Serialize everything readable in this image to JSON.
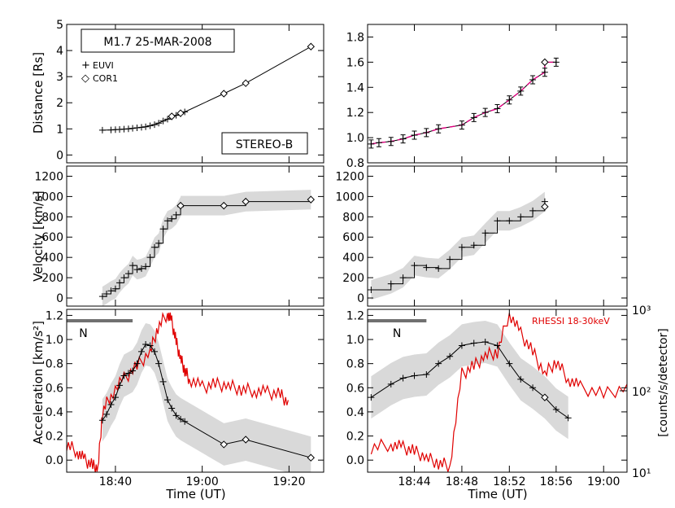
{
  "figure": {
    "ylabels": [
      "Distance [Rs]",
      "Velocity [km/s]",
      "Acceleration [km/s²]"
    ],
    "xlabel": "Time (UT)",
    "right_ylabel": "[counts/s/detector]",
    "legend_title": "M1.7 25-MAR-2008",
    "legend_euvi": "EUVI",
    "legend_cor1": "COR1",
    "spacecraft": "STEREO-B",
    "rhessi_label": "RHESSI 18-30keV",
    "bar_label": "N",
    "colors": {
      "profile": "#000000",
      "rhessi": "#e00000",
      "fit": "#e0007f",
      "band": "#d9d9d9",
      "bar": "#707070"
    }
  },
  "chart_data": [
    {
      "panel": "left-distance",
      "type": "line",
      "ylabel": "Distance [Rs]",
      "xlim": [
        18.48,
        19.466
      ],
      "ylim": [
        -0.3,
        5
      ],
      "yticks": [
        0,
        1,
        2,
        3,
        4,
        5
      ],
      "series": [
        {
          "name": "EUVI",
          "marker": "plus",
          "x": [
            18.617,
            18.65,
            18.667,
            18.683,
            18.7,
            18.717,
            18.733,
            18.75,
            18.767,
            18.783,
            18.8,
            18.817,
            18.833,
            18.85,
            18.867,
            18.883,
            18.9,
            18.917,
            18.933
          ],
          "y": [
            0.95,
            0.96,
            0.97,
            0.98,
            0.99,
            1.0,
            1.02,
            1.04,
            1.06,
            1.08,
            1.12,
            1.16,
            1.22,
            1.3,
            1.37,
            1.46,
            1.52,
            1.58,
            1.65
          ]
        },
        {
          "name": "COR1",
          "marker": "diamond",
          "x": [
            18.883,
            18.917,
            19.083,
            19.167,
            19.417
          ],
          "y": [
            1.48,
            1.6,
            2.35,
            2.75,
            4.15
          ]
        }
      ]
    },
    {
      "panel": "left-velocity",
      "type": "line",
      "ylabel": "Velocity [km/s]",
      "xlim": [
        18.48,
        19.466
      ],
      "ylim": [
        -80,
        1300
      ],
      "yticks": [
        0,
        200,
        400,
        600,
        800,
        1000,
        1200
      ],
      "series": [
        {
          "name": "EUVI",
          "marker": "plus",
          "x": [
            18.617,
            18.633,
            18.65,
            18.667,
            18.683,
            18.7,
            18.717,
            18.733,
            18.75,
            18.767,
            18.783,
            18.8,
            18.817,
            18.833,
            18.85,
            18.867,
            18.883,
            18.9,
            18.917
          ],
          "y": [
            15,
            40,
            70,
            90,
            150,
            200,
            240,
            320,
            280,
            290,
            310,
            400,
            500,
            540,
            680,
            760,
            780,
            820,
            900
          ]
        },
        {
          "name": "COR1",
          "marker": "diamond",
          "x": [
            18.917,
            19.083,
            19.167,
            19.417
          ],
          "y": [
            910,
            910,
            950,
            970
          ]
        }
      ]
    },
    {
      "panel": "left-acceleration",
      "type": "line",
      "ylabel": "Acceleration [km/s²]",
      "xlim": [
        18.48,
        19.466
      ],
      "ylim": [
        -0.1,
        1.25
      ],
      "yticks": [
        0.0,
        0.2,
        0.4,
        0.6,
        0.8,
        1.0,
        1.2
      ],
      "series": [
        {
          "name": "EUVI",
          "marker": "plus",
          "x": [
            18.617,
            18.633,
            18.65,
            18.667,
            18.683,
            18.7,
            18.717,
            18.733,
            18.75,
            18.767,
            18.783,
            18.8,
            18.817,
            18.833,
            18.85,
            18.867,
            18.883,
            18.9,
            18.917,
            18.933
          ],
          "y": [
            0.33,
            0.38,
            0.46,
            0.52,
            0.62,
            0.7,
            0.72,
            0.74,
            0.8,
            0.9,
            0.96,
            0.95,
            0.9,
            0.8,
            0.65,
            0.5,
            0.43,
            0.37,
            0.34,
            0.32
          ]
        },
        {
          "name": "COR1",
          "marker": "diamond",
          "x": [
            19.083,
            19.167,
            19.417
          ],
          "y": [
            0.13,
            0.17,
            0.02
          ]
        },
        {
          "name": "RHESSI 18-30keV",
          "units": "counts/s/detector",
          "x": [
            18.48,
            18.52,
            18.55,
            18.58,
            18.6,
            18.617,
            18.65,
            18.7,
            18.75,
            18.8,
            18.83,
            18.867,
            18.883,
            18.9,
            18.917,
            18.933,
            18.95,
            19.0,
            19.05,
            19.1,
            19.15,
            19.2,
            19.25,
            19.3,
            19.33
          ],
          "y": [
            22,
            18,
            14,
            12,
            11,
            55,
            90,
            140,
            200,
            300,
            600,
            900,
            700,
            400,
            250,
            180,
            140,
            110,
            120,
            115,
            105,
            100,
            95,
            90,
            70
          ]
        }
      ],
      "annotation": {
        "label": "N",
        "x_range": [
          18.48,
          18.733
        ]
      }
    },
    {
      "panel": "right-distance",
      "type": "line",
      "xlim": [
        18.667,
        19.033
      ],
      "ylim": [
        0.8,
        1.9
      ],
      "yticks": [
        0.8,
        1.0,
        1.2,
        1.4,
        1.6,
        1.8
      ],
      "series": [
        {
          "name": "EUVI",
          "marker": "plus",
          "x": [
            18.672,
            18.683,
            18.7,
            18.717,
            18.733,
            18.75,
            18.767,
            18.8,
            18.817,
            18.833,
            18.85,
            18.867,
            18.883,
            18.9,
            18.917,
            18.933
          ],
          "y": [
            0.95,
            0.96,
            0.97,
            0.99,
            1.02,
            1.04,
            1.07,
            1.1,
            1.16,
            1.2,
            1.23,
            1.3,
            1.37,
            1.46,
            1.52,
            1.6
          ]
        },
        {
          "name": "COR1",
          "marker": "diamond",
          "x": [
            18.917
          ],
          "y": [
            1.6
          ]
        }
      ]
    },
    {
      "panel": "right-velocity",
      "type": "line",
      "xlim": [
        18.667,
        19.033
      ],
      "ylim": [
        -80,
        1300
      ],
      "yticks": [
        0,
        200,
        400,
        600,
        800,
        1000,
        1200
      ],
      "series": [
        {
          "name": "EUVI",
          "marker": "plus",
          "x": [
            18.672,
            18.7,
            18.717,
            18.733,
            18.75,
            18.767,
            18.783,
            18.8,
            18.817,
            18.833,
            18.85,
            18.867,
            18.883,
            18.9,
            18.917
          ],
          "y": [
            80,
            140,
            200,
            320,
            300,
            290,
            380,
            500,
            520,
            640,
            760,
            760,
            800,
            860,
            950
          ]
        },
        {
          "name": "COR1",
          "marker": "diamond",
          "x": [
            18.917
          ],
          "y": [
            900
          ]
        }
      ]
    },
    {
      "panel": "right-acceleration",
      "type": "line",
      "xlim": [
        18.667,
        19.033
      ],
      "ylim": [
        -0.1,
        1.25
      ],
      "yticks": [
        0.0,
        0.2,
        0.4,
        0.6,
        0.8,
        1.0,
        1.2
      ],
      "right_axis": {
        "label": "[counts/s/detector]",
        "scale": "log",
        "lim": [
          10,
          1000
        ],
        "ticks": [
          "10¹",
          "10²",
          "10³"
        ]
      },
      "series": [
        {
          "name": "EUVI",
          "marker": "plus",
          "x": [
            18.672,
            18.7,
            18.717,
            18.733,
            18.75,
            18.767,
            18.783,
            18.8,
            18.817,
            18.833,
            18.85,
            18.867,
            18.883,
            18.9,
            18.917,
            18.933,
            18.95
          ],
          "y": [
            0.52,
            0.63,
            0.68,
            0.7,
            0.71,
            0.8,
            0.86,
            0.95,
            0.97,
            0.98,
            0.95,
            0.8,
            0.67,
            0.6,
            0.52,
            0.42,
            0.35
          ]
        },
        {
          "name": "COR1",
          "marker": "diamond",
          "x": [
            18.917
          ],
          "y": [
            0.52
          ]
        },
        {
          "name": "RHESSI 18-30keV",
          "units": "counts/s/detector",
          "x": [
            18.672,
            18.7,
            18.717,
            18.733,
            18.75,
            18.767,
            18.783,
            18.8,
            18.817,
            18.833,
            18.85,
            18.867,
            18.883,
            18.9,
            18.917,
            18.933,
            18.95,
            18.967,
            19.0,
            19.033
          ],
          "y": [
            20,
            22,
            20,
            18,
            15,
            13,
            12,
            160,
            200,
            270,
            300,
            900,
            500,
            300,
            160,
            230,
            140,
            110,
            90,
            110
          ]
        }
      ],
      "annotation": {
        "label": "N",
        "x_range": [
          18.667,
          18.75
        ]
      }
    }
  ],
  "x_axes": {
    "left": {
      "ticks": [
        18.667,
        19.0,
        19.333
      ],
      "labels": [
        "18:40",
        "19:00",
        "19:20"
      ]
    },
    "right": {
      "ticks": [
        18.733,
        18.8,
        18.867,
        18.933,
        19.0
      ],
      "labels": [
        "18:44",
        "18:48",
        "18:52",
        "18:56",
        "19:00"
      ]
    }
  }
}
